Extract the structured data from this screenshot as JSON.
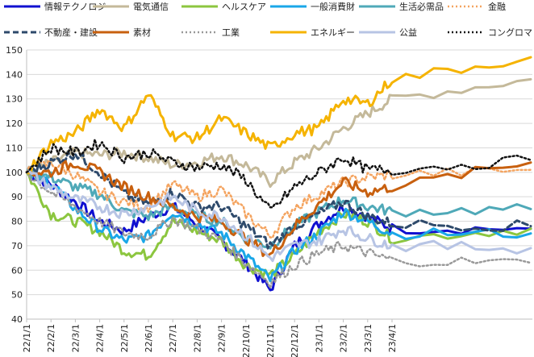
{
  "chart_data": {
    "type": "line",
    "title": "",
    "xlabel": "",
    "ylabel": "",
    "ylim": [
      40,
      150
    ],
    "yticks": [
      40,
      50,
      60,
      70,
      80,
      90,
      100,
      110,
      120,
      130,
      140,
      150
    ],
    "grid": true,
    "legend_position": "top",
    "x_tick_labels": [
      "22/1/1",
      "22/2/1",
      "22/3/1",
      "22/4/1",
      "22/5/1",
      "22/6/1",
      "22/7/1",
      "22/8/1",
      "22/9/1",
      "22/10/1",
      "22/11/1",
      "22/12/1",
      "23/1/1",
      "23/2/1",
      "23/3/1",
      "23/4/1"
    ],
    "x": [
      "22/1/1",
      "22/2/1",
      "22/3/1",
      "22/4/1",
      "22/5/1",
      "22/6/1",
      "22/7/1",
      "22/8/1",
      "22/9/1",
      "22/10/1",
      "22/11/1",
      "22/12/1",
      "23/1/1",
      "23/2/1",
      "23/3/1",
      "23/4/1",
      "23/4/21"
    ],
    "series": [
      {
        "name": "情報テクノロジー",
        "color": "#1010d0",
        "dash": "solid",
        "width": 3,
        "values": [
          100,
          95,
          88,
          80,
          76,
          82,
          86,
          79,
          72,
          63,
          52,
          70,
          79,
          86,
          82,
          77,
          77
        ]
      },
      {
        "name": "電気通信",
        "color": "#c4b99a",
        "dash": "solid",
        "width": 3,
        "values": [
          100,
          104,
          108,
          107,
          108,
          106,
          103,
          104,
          107,
          103,
          96,
          104,
          110,
          118,
          124,
          130,
          138
        ]
      },
      {
        "name": "ヘルスケア",
        "color": "#8cc63f",
        "dash": "solid",
        "width": 3,
        "values": [
          100,
          83,
          80,
          76,
          68,
          66,
          80,
          76,
          72,
          62,
          58,
          66,
          76,
          83,
          80,
          73,
          77
        ]
      },
      {
        "name": "一般消費財",
        "color": "#1aa7e8",
        "dash": "solid",
        "width": 3,
        "values": [
          100,
          96,
          85,
          77,
          72,
          74,
          84,
          79,
          75,
          66,
          56,
          68,
          75,
          84,
          80,
          75,
          75
        ]
      },
      {
        "name": "生活必需品",
        "color": "#4fa9b8",
        "dash": "solid",
        "width": 3,
        "values": [
          100,
          98,
          94,
          91,
          84,
          82,
          86,
          82,
          80,
          73,
          70,
          78,
          84,
          89,
          86,
          84,
          85
        ]
      },
      {
        "name": "金融",
        "color": "#f4a460",
        "dash": "dot",
        "width": 2.5,
        "values": [
          100,
          104,
          99,
          92,
          88,
          86,
          95,
          90,
          93,
          83,
          74,
          86,
          91,
          96,
          98,
          99,
          101
        ]
      },
      {
        "name": "不動産・建設",
        "color": "#2e4a6b",
        "dash": "dash",
        "width": 3,
        "values": [
          100,
          104,
          108,
          100,
          91,
          87,
          92,
          86,
          86,
          78,
          70,
          78,
          83,
          88,
          82,
          79,
          78
        ]
      },
      {
        "name": "素材",
        "color": "#c8600f",
        "dash": "solid",
        "width": 3,
        "values": [
          100,
          100,
          104,
          100,
          94,
          90,
          86,
          82,
          80,
          73,
          66,
          78,
          87,
          96,
          92,
          94,
          104
        ]
      },
      {
        "name": "工業",
        "color": "#999999",
        "dash": "dot",
        "width": 2.5,
        "values": [
          100,
          92,
          86,
          80,
          75,
          74,
          81,
          77,
          72,
          63,
          55,
          62,
          67,
          70,
          67,
          64,
          63
        ]
      },
      {
        "name": "エネルギー",
        "color": "#f5b300",
        "dash": "solid",
        "width": 3,
        "values": [
          100,
          112,
          116,
          126,
          118,
          132,
          115,
          114,
          122,
          116,
          110,
          116,
          118,
          130,
          128,
          138,
          147
        ]
      },
      {
        "name": "公益",
        "color": "#b7c4e4",
        "dash": "solid",
        "width": 3,
        "values": [
          100,
          94,
          89,
          86,
          83,
          86,
          90,
          84,
          82,
          74,
          65,
          70,
          72,
          77,
          73,
          70,
          69
        ]
      },
      {
        "name": "コングロマリット",
        "color": "#111111",
        "dash": "dot",
        "width": 2.5,
        "values": [
          100,
          110,
          108,
          112,
          106,
          108,
          104,
          102,
          103,
          97,
          84,
          94,
          100,
          106,
          101,
          101,
          105
        ]
      }
    ]
  }
}
